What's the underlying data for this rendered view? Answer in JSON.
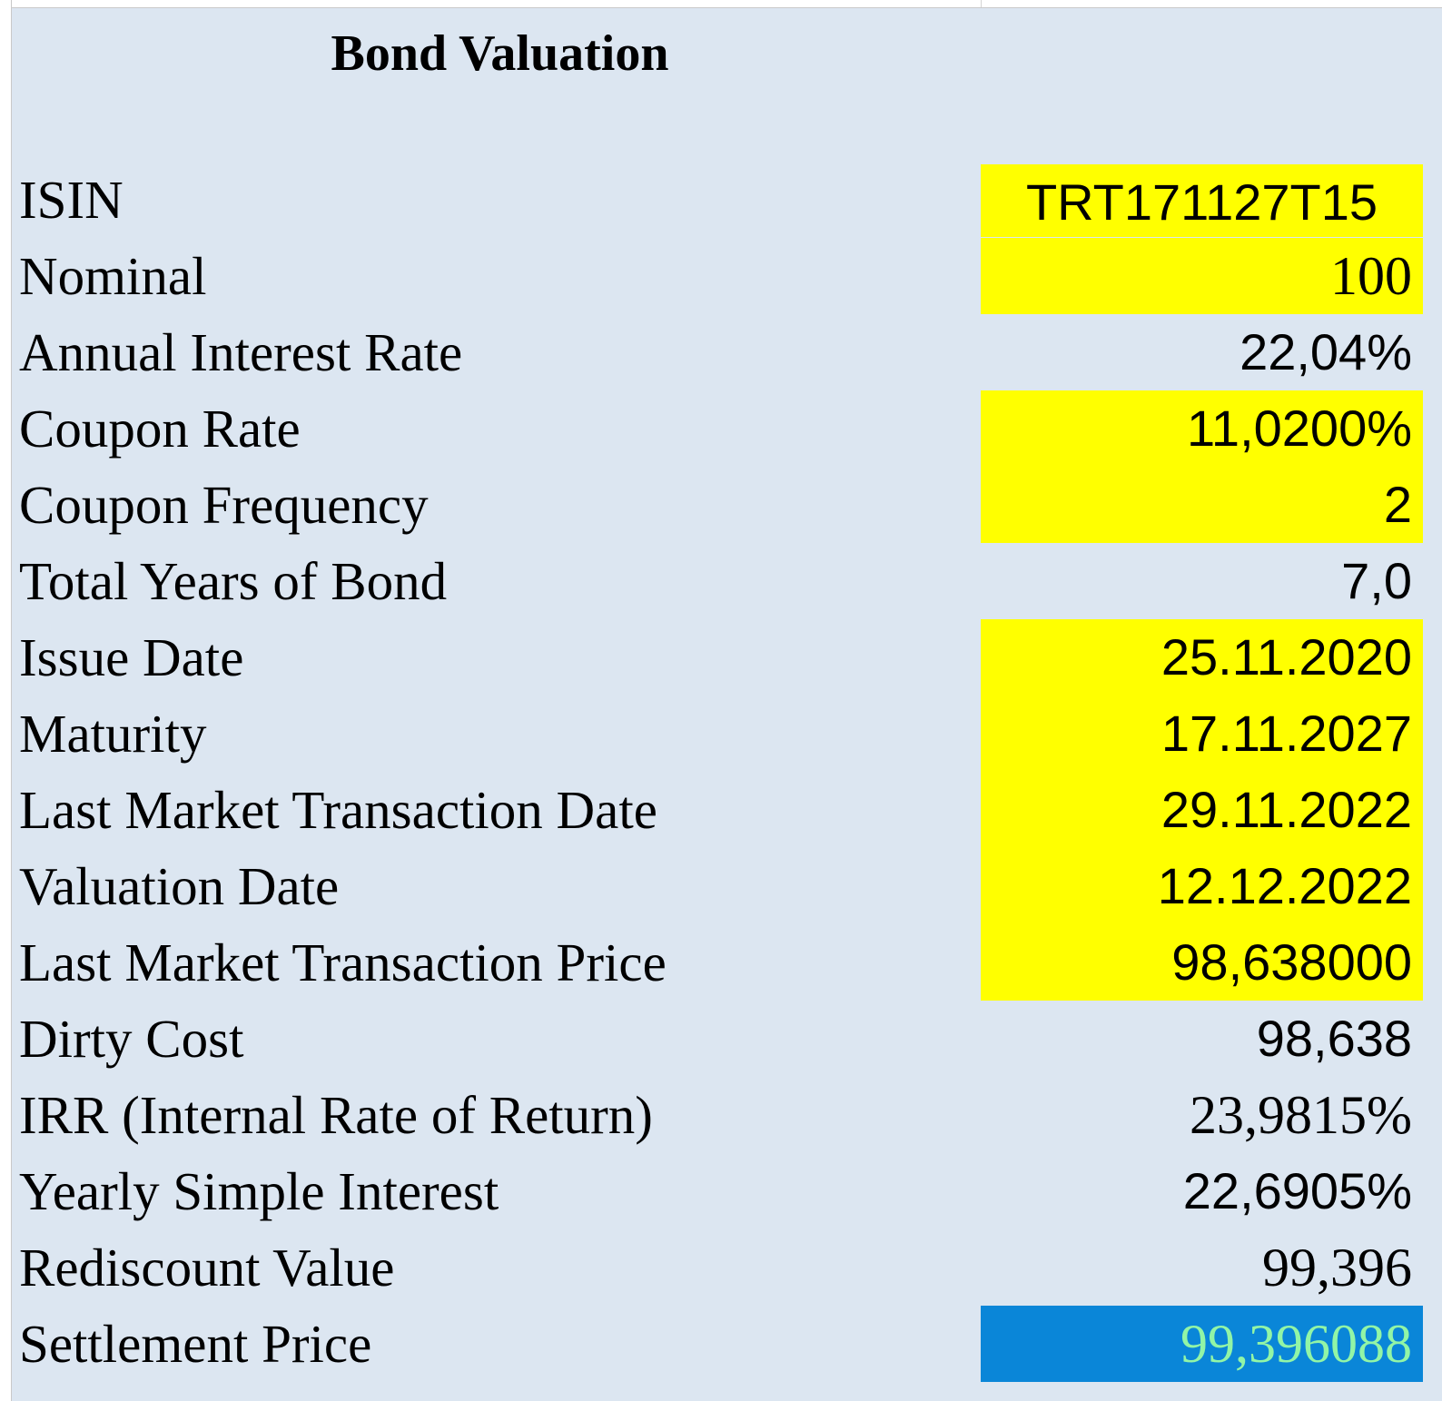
{
  "title": "Bond Valuation",
  "rows": [
    {
      "label": "ISIN",
      "value": "TRT171127T15"
    },
    {
      "label": "Nominal",
      "value": "100"
    },
    {
      "label": "Annual Interest Rate",
      "value": "22,04%"
    },
    {
      "label": "Coupon Rate",
      "value": "11,0200%"
    },
    {
      "label": "Coupon Frequency",
      "value": "2"
    },
    {
      "label": "Total Years of Bond",
      "value": "7,0"
    },
    {
      "label": "Issue Date",
      "value": "25.11.2020"
    },
    {
      "label": "Maturity",
      "value": "17.11.2027"
    },
    {
      "label": "Last Market Transaction Date",
      "value": "29.11.2022"
    },
    {
      "label": "Valuation Date",
      "value": "12.12.2022"
    },
    {
      "label": "Last Market Transaction Price",
      "value": "98,638000"
    },
    {
      "label": "Dirty Cost",
      "value": "98,638"
    },
    {
      "label": "IRR (Internal Rate of Return)",
      "value": "23,9815%"
    },
    {
      "label": "Yearly Simple Interest",
      "value": "22,6905%"
    },
    {
      "label": "Rediscount Value",
      "value": "99,396"
    },
    {
      "label": "Settlement Price",
      "value": "99,396088"
    }
  ],
  "colors": {
    "panel_background": "#dce6f1",
    "input_highlight": "#ffff00",
    "result_highlight": "#0a86d8",
    "result_text": "#92f5a6"
  }
}
